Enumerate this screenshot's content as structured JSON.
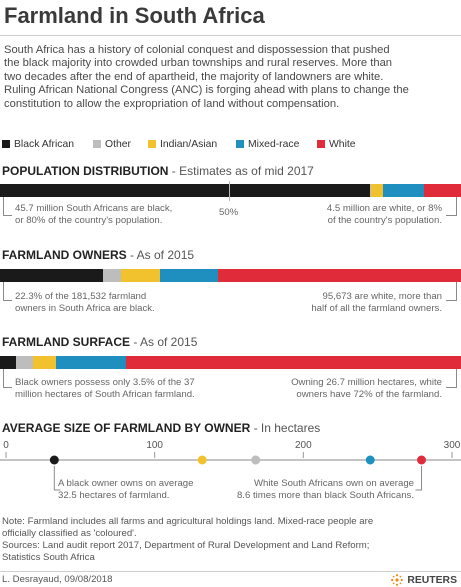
{
  "title": "Farmland in South Africa",
  "intro": [
    "South Africa has a history of colonial conquest and dispossession that pushed",
    "the black majority into crowded urban townships and rural reserves. More than",
    "two decades after the end of apartheid, the majority of landowners are white.",
    "Ruling African National Congress (ANC) is forging ahead with plans to change the",
    "constitution to allow the expropriation of land without compensation."
  ],
  "legend": [
    {
      "label": "Black African",
      "color": "#1a1a1a"
    },
    {
      "label": "Other",
      "color": "#bdbdbd"
    },
    {
      "label": "Indian/Asian",
      "color": "#f2c12e"
    },
    {
      "label": "Mixed-race",
      "color": "#1f8fc0"
    },
    {
      "label": "White",
      "color": "#e02b3a"
    }
  ],
  "sections": {
    "population": {
      "title": "POPULATION DISTRIBUTION",
      "subtitle": " - Estimates as of mid 2017",
      "note_left": [
        "45.7 million South Africans are black,",
        "or 80% of the country's population."
      ],
      "note_right": [
        "4.5 million are white, or 8%",
        "of the country's population."
      ],
      "mid_label": "50%"
    },
    "owners": {
      "title": "FARMLAND OWNERS",
      "subtitle": " - As of 2015",
      "note_left": [
        "22.3% of the 181,532 farmland",
        "owners in South Africa are black."
      ],
      "note_right": [
        "95,673 are white, more than",
        "half of all the farmland owners."
      ]
    },
    "surface": {
      "title": "FARMLAND SURFACE",
      "subtitle": " - As of 2015",
      "note_left": [
        "Black owners possess only 3.5% of the 37",
        "million hectares of South African farmland."
      ],
      "note_right": [
        "Owning  26.7 million hectares, white",
        "owners have 72% of the farmland."
      ]
    },
    "average": {
      "title": "AVERAGE SIZE OF FARMLAND BY OWNER",
      "subtitle": " - In hectares",
      "note_left": [
        "A black owner owns on average",
        "32.5 hectares of farmland."
      ],
      "note_right": [
        "White South Africans own on average",
        "8.6 times more than black South Africans."
      ]
    }
  },
  "footnote": [
    "Note: Farmland includes all farms and agricultural holdings land. Mixed-race people are",
    "officially classified as 'coloured'.",
    "Sources: Land audit report 2017, Department of Rural Development and Land Reform;",
    "Statistics South Africa"
  ],
  "credit": "L. Desrayaud, 09/08/2018",
  "logo_text": "REUTERS",
  "chart_data": [
    {
      "type": "bar",
      "title": "POPULATION DISTRIBUTION - Estimates as of mid 2017",
      "unit": "percent of population",
      "categories": [
        "Black African",
        "Other",
        "Indian/Asian",
        "Mixed-race",
        "White"
      ],
      "values": [
        80,
        0.3,
        2.5,
        8.9,
        8.0
      ],
      "colors": [
        "#1a1a1a",
        "#bdbdbd",
        "#f2c12e",
        "#1f8fc0",
        "#e02b3a"
      ],
      "stacked": true
    },
    {
      "type": "bar",
      "title": "FARMLAND OWNERS - As of 2015",
      "unit": "percent of farmland owners",
      "categories": [
        "Black African",
        "Other",
        "Indian/Asian",
        "Mixed-race",
        "White"
      ],
      "values": [
        22.3,
        4.0,
        8.5,
        12.5,
        52.7
      ],
      "colors": [
        "#1a1a1a",
        "#bdbdbd",
        "#f2c12e",
        "#1f8fc0",
        "#e02b3a"
      ],
      "stacked": true
    },
    {
      "type": "bar",
      "title": "FARMLAND SURFACE - As of 2015",
      "unit": "percent of farmland",
      "categories": [
        "Black African",
        "Other",
        "Indian/Asian",
        "Mixed-race",
        "White"
      ],
      "values": [
        3.5,
        3.5,
        5.0,
        15.0,
        72.0
      ],
      "colors": [
        "#1a1a1a",
        "#bdbdbd",
        "#f2c12e",
        "#1f8fc0",
        "#e02b3a"
      ],
      "stacked": true
    },
    {
      "type": "scatter",
      "title": "AVERAGE SIZE OF FARMLAND BY OWNER - In hectares",
      "xlim": [
        0,
        300
      ],
      "xticks": [
        0,
        100,
        200,
        300
      ],
      "points": [
        {
          "name": "Black African",
          "x": 32.5,
          "color": "#1a1a1a"
        },
        {
          "name": "Indian/Asian",
          "x": 132,
          "color": "#f2c12e"
        },
        {
          "name": "Other",
          "x": 168,
          "color": "#bdbdbd"
        },
        {
          "name": "Mixed-race",
          "x": 245,
          "color": "#1f8fc0"
        },
        {
          "name": "White",
          "x": 279.5,
          "color": "#e02b3a"
        }
      ]
    }
  ]
}
